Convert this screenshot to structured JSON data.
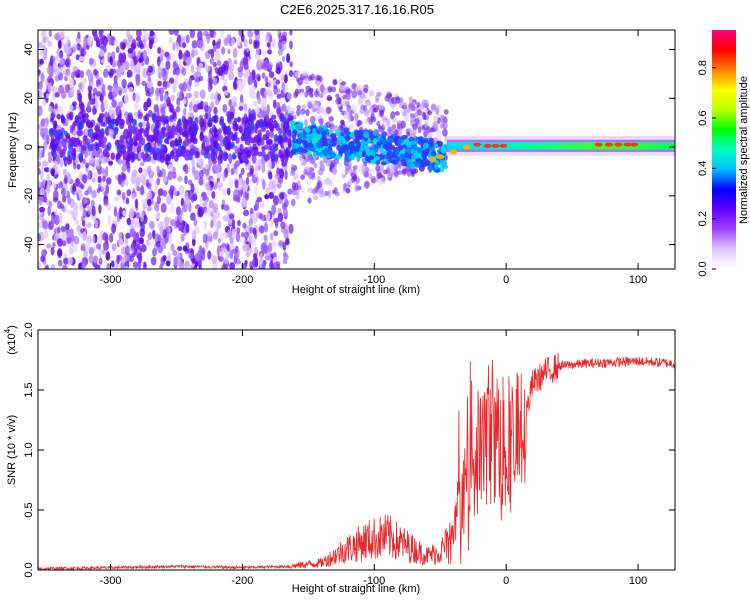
{
  "title": "C2E6.2025.317.16.16.R05",
  "chart_data": [
    {
      "type": "heatmap",
      "xlabel": "Height of straight line (km)",
      "ylabel": "Frequency (Hz)",
      "xlim": [
        -355,
        128
      ],
      "ylim": [
        -50,
        48
      ],
      "x_ticks": [
        -300,
        -200,
        -100,
        0,
        100
      ],
      "y_ticks": [
        -40,
        -20,
        0,
        20,
        40
      ],
      "colorbar": {
        "label": "Normalized spectral amplitude",
        "range": [
          0.0,
          0.95
        ],
        "ticks": [
          "0.0",
          "0.2",
          "0.4",
          "0.6",
          "0.8"
        ],
        "colors": [
          "#ffffff",
          "#e0c8ff",
          "#a040ff",
          "#6000ff",
          "#0000ff",
          "#00c0ff",
          "#00ffc0",
          "#00ff00",
          "#c0ff00",
          "#ffff00",
          "#ff8000",
          "#ff0000",
          "#ff0080"
        ]
      },
      "regions": [
        {
          "x": [
            -355,
            -163
          ],
          "description_level": 0.15,
          "f_center": 5,
          "f_spread": 48
        },
        {
          "x": [
            -163,
            -45
          ],
          "description_level": 0.35,
          "f_center": 3,
          "f_spread": 12
        },
        {
          "x": [
            -45,
            128
          ],
          "description_level": 0.55,
          "f_center": 1,
          "f_spread": 3
        }
      ]
    },
    {
      "type": "line",
      "xlabel": "Height of straight line (km)",
      "ylabel": "SNR (10 * v/v)",
      "y_multiplier": "(x10",
      "y_multiplier_exp": "4",
      "y_multiplier_close": ")",
      "xlim": [
        -355,
        128
      ],
      "ylim": [
        0.0,
        2.0
      ],
      "x_ticks": [
        -300,
        -200,
        -100,
        0,
        100
      ],
      "y_ticks": [
        "0.0",
        "0.5",
        "1.0",
        "1.5",
        "2.0"
      ],
      "color": "#e8282a",
      "series": [
        {
          "x": [
            -355,
            -300,
            -250,
            -200,
            -165,
            -140,
            -120,
            -105,
            -90,
            -75,
            -60,
            -50,
            -40,
            -35,
            -30,
            -27,
            -25,
            -20,
            -15,
            -10,
            -5,
            0,
            5,
            10,
            15,
            20,
            30,
            40,
            60,
            80,
            100,
            128
          ],
          "y": [
            0.01,
            0.02,
            0.03,
            0.02,
            0.03,
            0.06,
            0.18,
            0.25,
            0.28,
            0.2,
            0.12,
            0.15,
            0.3,
            0.5,
            0.75,
            1.1,
            0.9,
            1.0,
            1.1,
            1.2,
            1.0,
            1.1,
            1.0,
            1.1,
            1.3,
            1.55,
            1.65,
            1.7,
            1.72,
            1.73,
            1.74,
            1.72
          ]
        }
      ]
    }
  ]
}
